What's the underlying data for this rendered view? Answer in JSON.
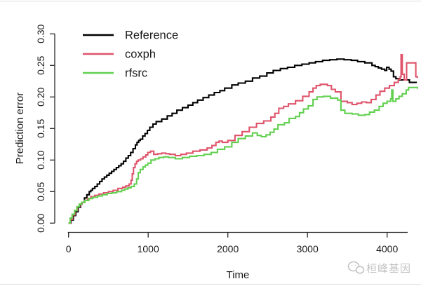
{
  "page": {
    "watermark": {
      "text": "桓峰基因",
      "icon": "wechat-icon",
      "color": "#c4c4c4"
    }
  },
  "chart_data": {
    "type": "line",
    "title": "",
    "xlabel": "Time",
    "ylabel": "Prediction error",
    "xlim": [
      0,
      4380
    ],
    "ylim": [
      0,
      0.3
    ],
    "grid": false,
    "legend_position": "top-left",
    "step_interpolation": "step-after",
    "x_ticks": {
      "values": [
        0,
        1000,
        2000,
        3000,
        4000
      ],
      "labels": [
        "0",
        "1000",
        "2000",
        "3000",
        "4000"
      ]
    },
    "y_ticks": {
      "values": [
        0.0,
        0.05,
        0.1,
        0.15,
        0.2,
        0.25,
        0.3
      ],
      "labels": [
        "0.00",
        "0.05",
        "0.10",
        "0.15",
        "0.20",
        "0.25",
        "0.30"
      ]
    },
    "axis_color": "#2a2a2a",
    "series": [
      {
        "name": "Reference",
        "color": "#000000",
        "points": [
          [
            0,
            0.0
          ],
          [
            30,
            0.005
          ],
          [
            60,
            0.012
          ],
          [
            90,
            0.018
          ],
          [
            120,
            0.025
          ],
          [
            150,
            0.03
          ],
          [
            170,
            0.033
          ],
          [
            200,
            0.04
          ],
          [
            230,
            0.045
          ],
          [
            260,
            0.05
          ],
          [
            280,
            0.052
          ],
          [
            300,
            0.055
          ],
          [
            330,
            0.058
          ],
          [
            360,
            0.062
          ],
          [
            390,
            0.066
          ],
          [
            420,
            0.07
          ],
          [
            450,
            0.073
          ],
          [
            480,
            0.076
          ],
          [
            510,
            0.079
          ],
          [
            540,
            0.082
          ],
          [
            570,
            0.085
          ],
          [
            600,
            0.088
          ],
          [
            630,
            0.091
          ],
          [
            660,
            0.094
          ],
          [
            690,
            0.098
          ],
          [
            720,
            0.103
          ],
          [
            750,
            0.107
          ],
          [
            780,
            0.112
          ],
          [
            810,
            0.118
          ],
          [
            840,
            0.124
          ],
          [
            860,
            0.128
          ],
          [
            880,
            0.131
          ],
          [
            900,
            0.133
          ],
          [
            930,
            0.138
          ],
          [
            960,
            0.142
          ],
          [
            990,
            0.147
          ],
          [
            1020,
            0.152
          ],
          [
            1060,
            0.157
          ],
          [
            1100,
            0.161
          ],
          [
            1170,
            0.165
          ],
          [
            1240,
            0.17
          ],
          [
            1300,
            0.174
          ],
          [
            1360,
            0.179
          ],
          [
            1430,
            0.183
          ],
          [
            1500,
            0.187
          ],
          [
            1560,
            0.191
          ],
          [
            1620,
            0.195
          ],
          [
            1690,
            0.199
          ],
          [
            1760,
            0.203
          ],
          [
            1830,
            0.207
          ],
          [
            1900,
            0.21
          ],
          [
            1960,
            0.214
          ],
          [
            2050,
            0.219
          ],
          [
            2130,
            0.222
          ],
          [
            2220,
            0.225
          ],
          [
            2310,
            0.23
          ],
          [
            2400,
            0.233
          ],
          [
            2490,
            0.238
          ],
          [
            2570,
            0.242
          ],
          [
            2660,
            0.245
          ],
          [
            2750,
            0.247
          ],
          [
            2840,
            0.25
          ],
          [
            2930,
            0.252
          ],
          [
            3020,
            0.254
          ],
          [
            3100,
            0.256
          ],
          [
            3190,
            0.258
          ],
          [
            3280,
            0.259
          ],
          [
            3370,
            0.26
          ],
          [
            3460,
            0.259
          ],
          [
            3550,
            0.258
          ],
          [
            3630,
            0.256
          ],
          [
            3720,
            0.254
          ],
          [
            3810,
            0.25
          ],
          [
            3850,
            0.248
          ],
          [
            3890,
            0.246
          ],
          [
            3930,
            0.244
          ],
          [
            3970,
            0.242
          ],
          [
            3995,
            0.247
          ],
          [
            4025,
            0.244
          ],
          [
            4050,
            0.241
          ],
          [
            4080,
            0.232
          ],
          [
            4110,
            0.229
          ],
          [
            4150,
            0.227
          ],
          [
            4250,
            0.227
          ],
          [
            4280,
            0.223
          ],
          [
            4365,
            0.222
          ]
        ]
      },
      {
        "name": "coxph",
        "color": "#DF536B",
        "points": [
          [
            0,
            0.0
          ],
          [
            25,
            0.006
          ],
          [
            50,
            0.013
          ],
          [
            80,
            0.02
          ],
          [
            110,
            0.026
          ],
          [
            140,
            0.03
          ],
          [
            170,
            0.033
          ],
          [
            200,
            0.036
          ],
          [
            240,
            0.039
          ],
          [
            280,
            0.042
          ],
          [
            330,
            0.044
          ],
          [
            380,
            0.046
          ],
          [
            440,
            0.048
          ],
          [
            500,
            0.05
          ],
          [
            560,
            0.052
          ],
          [
            620,
            0.055
          ],
          [
            680,
            0.057
          ],
          [
            720,
            0.059
          ],
          [
            760,
            0.062
          ],
          [
            785,
            0.068
          ],
          [
            800,
            0.078
          ],
          [
            815,
            0.088
          ],
          [
            835,
            0.094
          ],
          [
            855,
            0.098
          ],
          [
            875,
            0.1
          ],
          [
            905,
            0.102
          ],
          [
            935,
            0.105
          ],
          [
            970,
            0.108
          ],
          [
            995,
            0.112
          ],
          [
            1030,
            0.114
          ],
          [
            1070,
            0.109
          ],
          [
            1120,
            0.11
          ],
          [
            1170,
            0.111
          ],
          [
            1220,
            0.11
          ],
          [
            1270,
            0.109
          ],
          [
            1340,
            0.107
          ],
          [
            1410,
            0.109
          ],
          [
            1480,
            0.111
          ],
          [
            1560,
            0.114
          ],
          [
            1650,
            0.116
          ],
          [
            1740,
            0.119
          ],
          [
            1800,
            0.123
          ],
          [
            1850,
            0.128
          ],
          [
            1890,
            0.13
          ],
          [
            1930,
            0.128
          ],
          [
            2000,
            0.131
          ],
          [
            2090,
            0.139
          ],
          [
            2180,
            0.145
          ],
          [
            2270,
            0.152
          ],
          [
            2360,
            0.158
          ],
          [
            2450,
            0.162
          ],
          [
            2540,
            0.168
          ],
          [
            2590,
            0.174
          ],
          [
            2640,
            0.182
          ],
          [
            2700,
            0.185
          ],
          [
            2760,
            0.189
          ],
          [
            2850,
            0.194
          ],
          [
            2940,
            0.201
          ],
          [
            3020,
            0.208
          ],
          [
            3070,
            0.214
          ],
          [
            3110,
            0.218
          ],
          [
            3160,
            0.22
          ],
          [
            3250,
            0.218
          ],
          [
            3300,
            0.212
          ],
          [
            3350,
            0.208
          ],
          [
            3420,
            0.193
          ],
          [
            3500,
            0.191
          ],
          [
            3560,
            0.188
          ],
          [
            3620,
            0.19
          ],
          [
            3680,
            0.192
          ],
          [
            3740,
            0.191
          ],
          [
            3800,
            0.196
          ],
          [
            3860,
            0.203
          ],
          [
            3910,
            0.209
          ],
          [
            3970,
            0.214
          ],
          [
            4030,
            0.218
          ],
          [
            4090,
            0.223
          ],
          [
            4140,
            0.228
          ],
          [
            4165,
            0.232
          ],
          [
            4175,
            0.267
          ],
          [
            4190,
            0.236
          ],
          [
            4215,
            0.227
          ],
          [
            4245,
            0.254
          ],
          [
            4345,
            0.254
          ],
          [
            4360,
            0.232
          ],
          [
            4380,
            0.23
          ]
        ]
      },
      {
        "name": "rfsrc",
        "color": "#61D04F",
        "points": [
          [
            0,
            0.0
          ],
          [
            20,
            0.008
          ],
          [
            45,
            0.014
          ],
          [
            75,
            0.02
          ],
          [
            105,
            0.026
          ],
          [
            135,
            0.03
          ],
          [
            165,
            0.033
          ],
          [
            205,
            0.036
          ],
          [
            255,
            0.039
          ],
          [
            305,
            0.041
          ],
          [
            365,
            0.043
          ],
          [
            425,
            0.045
          ],
          [
            485,
            0.047
          ],
          [
            545,
            0.048
          ],
          [
            605,
            0.05
          ],
          [
            665,
            0.052
          ],
          [
            705,
            0.054
          ],
          [
            745,
            0.056
          ],
          [
            785,
            0.058
          ],
          [
            825,
            0.062
          ],
          [
            855,
            0.07
          ],
          [
            875,
            0.08
          ],
          [
            900,
            0.085
          ],
          [
            935,
            0.089
          ],
          [
            965,
            0.092
          ],
          [
            995,
            0.095
          ],
          [
            1035,
            0.1
          ],
          [
            1085,
            0.102
          ],
          [
            1135,
            0.104
          ],
          [
            1195,
            0.105
          ],
          [
            1255,
            0.104
          ],
          [
            1340,
            0.102
          ],
          [
            1430,
            0.104
          ],
          [
            1520,
            0.106
          ],
          [
            1610,
            0.107
          ],
          [
            1700,
            0.109
          ],
          [
            1790,
            0.112
          ],
          [
            1870,
            0.117
          ],
          [
            1960,
            0.121
          ],
          [
            2050,
            0.128
          ],
          [
            2130,
            0.134
          ],
          [
            2220,
            0.138
          ],
          [
            2310,
            0.143
          ],
          [
            2370,
            0.139
          ],
          [
            2420,
            0.137
          ],
          [
            2480,
            0.14
          ],
          [
            2530,
            0.144
          ],
          [
            2580,
            0.149
          ],
          [
            2630,
            0.156
          ],
          [
            2710,
            0.159
          ],
          [
            2770,
            0.166
          ],
          [
            2850,
            0.169
          ],
          [
            2900,
            0.175
          ],
          [
            2950,
            0.181
          ],
          [
            3010,
            0.186
          ],
          [
            3070,
            0.196
          ],
          [
            3120,
            0.2
          ],
          [
            3200,
            0.201
          ],
          [
            3290,
            0.198
          ],
          [
            3380,
            0.195
          ],
          [
            3420,
            0.179
          ],
          [
            3470,
            0.174
          ],
          [
            3560,
            0.173
          ],
          [
            3640,
            0.171
          ],
          [
            3720,
            0.172
          ],
          [
            3780,
            0.176
          ],
          [
            3840,
            0.179
          ],
          [
            3900,
            0.185
          ],
          [
            3950,
            0.19
          ],
          [
            4000,
            0.193
          ],
          [
            4045,
            0.197
          ],
          [
            4058,
            0.211
          ],
          [
            4072,
            0.193
          ],
          [
            4110,
            0.197
          ],
          [
            4150,
            0.201
          ],
          [
            4190,
            0.205
          ],
          [
            4240,
            0.211
          ],
          [
            4270,
            0.215
          ],
          [
            4360,
            0.215
          ],
          [
            4380,
            0.213
          ]
        ]
      }
    ]
  }
}
